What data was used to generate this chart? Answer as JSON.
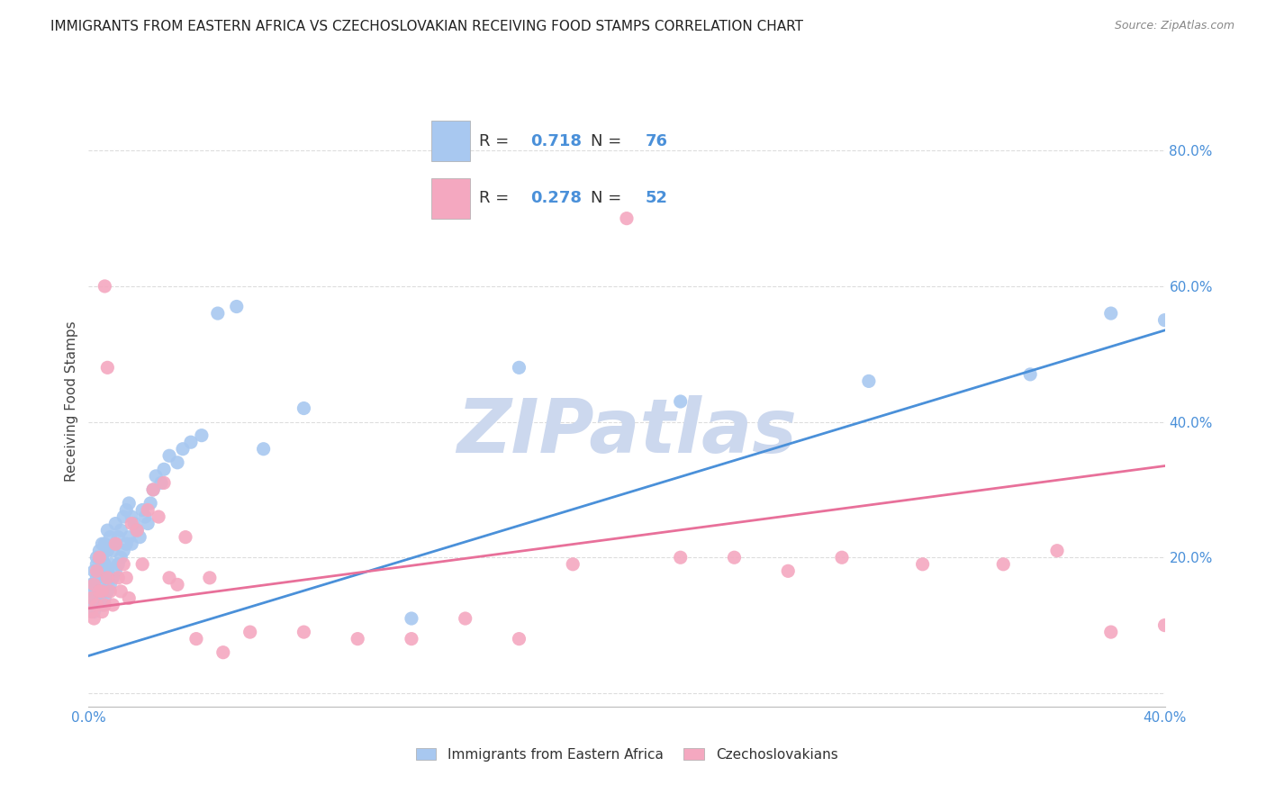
{
  "title": "IMMIGRANTS FROM EASTERN AFRICA VS CZECHOSLOVAKIAN RECEIVING FOOD STAMPS CORRELATION CHART",
  "source": "Source: ZipAtlas.com",
  "ylabel": "Receiving Food Stamps",
  "ytick_values": [
    0.0,
    0.2,
    0.4,
    0.6,
    0.8
  ],
  "ytick_labels": [
    "",
    "20.0%",
    "40.0%",
    "60.0%",
    "80.0%"
  ],
  "xtick_values": [
    0.0,
    0.1,
    0.2,
    0.3,
    0.4
  ],
  "xtick_labels": [
    "0.0%",
    "",
    "",
    "",
    "40.0%"
  ],
  "xlim": [
    0.0,
    0.4
  ],
  "ylim": [
    -0.02,
    0.88
  ],
  "blue_R": 0.718,
  "blue_N": 76,
  "pink_R": 0.278,
  "pink_N": 52,
  "blue_color": "#a8c8f0",
  "pink_color": "#f4a8c0",
  "blue_line_color": "#4a90d9",
  "pink_line_color": "#e8709a",
  "tick_label_color": "#4a90d9",
  "legend_label_blue": "Immigrants from Eastern Africa",
  "legend_label_pink": "Czechoslovakians",
  "blue_trend_x": [
    0.0,
    0.4
  ],
  "blue_trend_y": [
    0.055,
    0.535
  ],
  "pink_trend_x": [
    0.0,
    0.4
  ],
  "pink_trend_y": [
    0.125,
    0.335
  ],
  "grid_color": "#dddddd",
  "background_color": "#ffffff",
  "title_fontsize": 11,
  "source_fontsize": 9,
  "watermark_text": "ZIPatlas",
  "watermark_color": "#ccd8ee",
  "watermark_fontsize": 60,
  "scatter_size": 120,
  "blue_scatter_x": [
    0.001,
    0.001,
    0.001,
    0.002,
    0.002,
    0.002,
    0.002,
    0.003,
    0.003,
    0.003,
    0.003,
    0.003,
    0.004,
    0.004,
    0.004,
    0.004,
    0.005,
    0.005,
    0.005,
    0.005,
    0.005,
    0.006,
    0.006,
    0.006,
    0.006,
    0.007,
    0.007,
    0.007,
    0.007,
    0.008,
    0.008,
    0.008,
    0.009,
    0.009,
    0.01,
    0.01,
    0.01,
    0.011,
    0.011,
    0.012,
    0.012,
    0.013,
    0.013,
    0.014,
    0.014,
    0.015,
    0.015,
    0.016,
    0.016,
    0.017,
    0.018,
    0.019,
    0.02,
    0.021,
    0.022,
    0.023,
    0.024,
    0.025,
    0.027,
    0.028,
    0.03,
    0.033,
    0.035,
    0.038,
    0.042,
    0.048,
    0.055,
    0.065,
    0.08,
    0.12,
    0.16,
    0.22,
    0.29,
    0.35,
    0.38,
    0.4
  ],
  "blue_scatter_y": [
    0.13,
    0.15,
    0.16,
    0.12,
    0.14,
    0.16,
    0.18,
    0.13,
    0.15,
    0.17,
    0.19,
    0.2,
    0.14,
    0.16,
    0.18,
    0.21,
    0.13,
    0.15,
    0.18,
    0.2,
    0.22,
    0.14,
    0.17,
    0.19,
    0.22,
    0.15,
    0.18,
    0.21,
    0.24,
    0.16,
    0.19,
    0.23,
    0.17,
    0.21,
    0.18,
    0.22,
    0.25,
    0.19,
    0.23,
    0.2,
    0.24,
    0.21,
    0.26,
    0.22,
    0.27,
    0.23,
    0.28,
    0.22,
    0.26,
    0.25,
    0.24,
    0.23,
    0.27,
    0.26,
    0.25,
    0.28,
    0.3,
    0.32,
    0.31,
    0.33,
    0.35,
    0.34,
    0.36,
    0.37,
    0.38,
    0.56,
    0.57,
    0.36,
    0.42,
    0.11,
    0.48,
    0.43,
    0.46,
    0.47,
    0.56,
    0.55
  ],
  "pink_scatter_x": [
    0.001,
    0.001,
    0.002,
    0.002,
    0.003,
    0.003,
    0.004,
    0.004,
    0.005,
    0.005,
    0.006,
    0.006,
    0.007,
    0.007,
    0.008,
    0.009,
    0.01,
    0.011,
    0.012,
    0.013,
    0.014,
    0.015,
    0.016,
    0.018,
    0.02,
    0.022,
    0.024,
    0.026,
    0.028,
    0.03,
    0.033,
    0.036,
    0.04,
    0.045,
    0.05,
    0.06,
    0.08,
    0.1,
    0.12,
    0.14,
    0.16,
    0.18,
    0.2,
    0.22,
    0.24,
    0.26,
    0.28,
    0.31,
    0.34,
    0.36,
    0.38,
    0.4
  ],
  "pink_scatter_y": [
    0.12,
    0.14,
    0.11,
    0.16,
    0.13,
    0.18,
    0.15,
    0.2,
    0.12,
    0.15,
    0.13,
    0.6,
    0.17,
    0.48,
    0.15,
    0.13,
    0.22,
    0.17,
    0.15,
    0.19,
    0.17,
    0.14,
    0.25,
    0.24,
    0.19,
    0.27,
    0.3,
    0.26,
    0.31,
    0.17,
    0.16,
    0.23,
    0.08,
    0.17,
    0.06,
    0.09,
    0.09,
    0.08,
    0.08,
    0.11,
    0.08,
    0.19,
    0.7,
    0.2,
    0.2,
    0.18,
    0.2,
    0.19,
    0.19,
    0.21,
    0.09,
    0.1
  ]
}
